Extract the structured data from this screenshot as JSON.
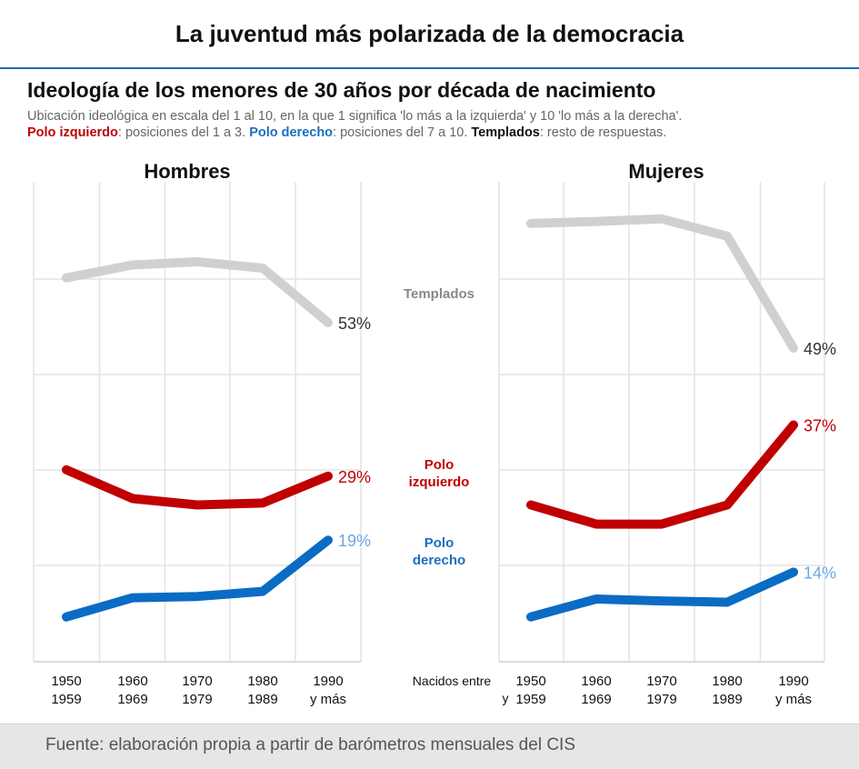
{
  "title": "La juventud más polarizada de la democracia",
  "subtitle": "Ideología de los menores de 30 años por década de nacimiento",
  "description": {
    "line1": "Ubicación ideológica en escala del 1 al 10, en la que 1 significa 'lo más a la izquierda' y 10 'lo más a la derecha'.",
    "polo_izq_label": "Polo izquierdo",
    "polo_izq_text": ": posiciones del 1 a 3. ",
    "polo_der_label": "Polo derecho",
    "polo_der_text": ": posiciones del 7 a 10. ",
    "templados_label": "Templados",
    "templados_text": ": resto de respuestas."
  },
  "source": "Fuente: elaboración propia a partir de barómetros mensuales del CIS",
  "colors": {
    "templados": "#d0d0d0",
    "izquierdo": "#c00000",
    "derecho": "#0a6cc4",
    "grid": "#e3e3e3"
  },
  "series_labels": {
    "templados": [
      "Templados"
    ],
    "izquierdo": [
      "Polo",
      "izquierdo"
    ],
    "derecho": [
      "Polo",
      "derecho"
    ]
  },
  "x_axis_caption": [
    "Nacidos entre",
    "y"
  ],
  "chart_data": [
    {
      "type": "line",
      "title": "Hombres",
      "categories": [
        [
          "1950",
          "1959"
        ],
        [
          "1960",
          "1969"
        ],
        [
          "1970",
          "1979"
        ],
        [
          "1980",
          "1989"
        ],
        [
          "1990",
          "y más"
        ]
      ],
      "ylim": [
        0,
        75
      ],
      "grid": true,
      "series": [
        {
          "key": "templados",
          "values": [
            60,
            62,
            62.5,
            61.5,
            53
          ],
          "end_label": "53%"
        },
        {
          "key": "izquierdo",
          "values": [
            30,
            25.5,
            24.5,
            24.8,
            29
          ],
          "end_label": "29%"
        },
        {
          "key": "derecho",
          "values": [
            7,
            10,
            10.2,
            11,
            19
          ],
          "end_label": "19%"
        }
      ]
    },
    {
      "type": "line",
      "title": "Mujeres",
      "categories": [
        [
          "1950",
          "1959"
        ],
        [
          "1960",
          "1969"
        ],
        [
          "1970",
          "1979"
        ],
        [
          "1980",
          "1989"
        ],
        [
          "1990",
          "y más"
        ]
      ],
      "ylim": [
        0,
        75
      ],
      "grid": true,
      "series": [
        {
          "key": "templados",
          "values": [
            68.5,
            68.8,
            69.2,
            66.5,
            49
          ],
          "end_label": "49%"
        },
        {
          "key": "izquierdo",
          "values": [
            24.5,
            21.5,
            21.5,
            24.5,
            37
          ],
          "end_label": "37%"
        },
        {
          "key": "derecho",
          "values": [
            7,
            9.8,
            9.5,
            9.3,
            14
          ],
          "end_label": "14%"
        }
      ]
    }
  ]
}
